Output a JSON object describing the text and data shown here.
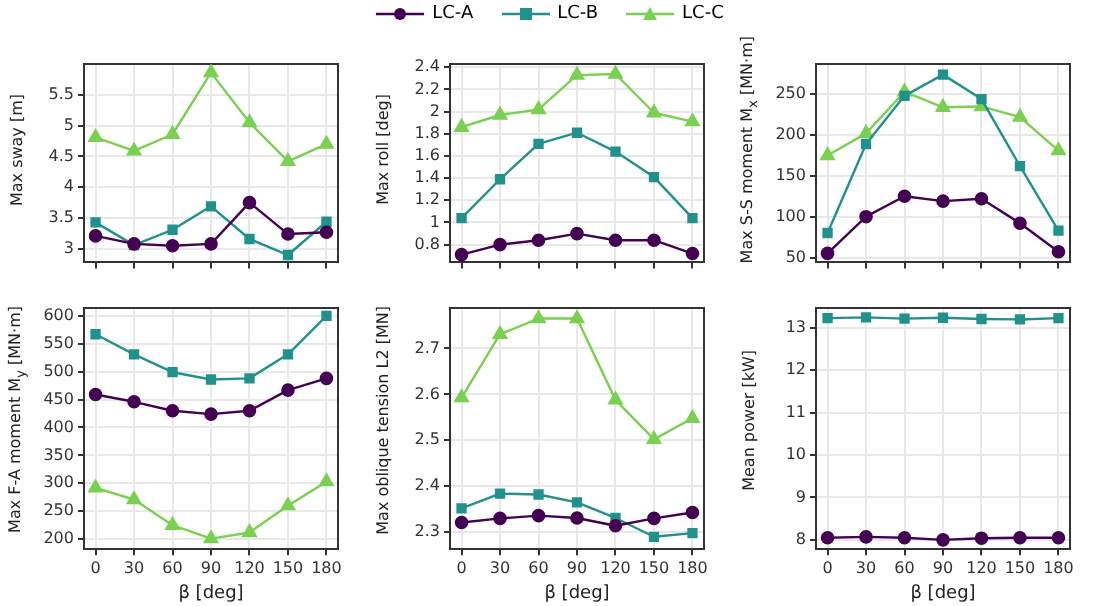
{
  "chart_data": [
    {
      "type": "line",
      "ylabel": "Max sway [m]",
      "x": [
        0,
        30,
        60,
        90,
        120,
        150,
        180
      ],
      "xlim": [
        -9,
        189
      ],
      "xticks": [
        0,
        30,
        60,
        90,
        120,
        150,
        180
      ],
      "ylim": [
        2.78,
        6.0
      ],
      "yticks": [
        3.0,
        3.5,
        4.0,
        4.5,
        5.0,
        5.5
      ],
      "grid": true,
      "legend": "top",
      "tick_labels": "y",
      "series": [
        {
          "name": "LC-A",
          "color": "#440154",
          "marker": "circle",
          "values": [
            3.21,
            3.08,
            3.05,
            3.08,
            3.75,
            3.24,
            3.27
          ]
        },
        {
          "name": "LC-B",
          "color": "#21918c",
          "marker": "square",
          "values": [
            3.43,
            3.06,
            3.31,
            3.69,
            3.16,
            2.9,
            3.44
          ]
        },
        {
          "name": "LC-C",
          "color": "#7ad151",
          "marker": "triangle",
          "values": [
            4.81,
            4.59,
            4.86,
            5.86,
            5.05,
            4.42,
            4.7
          ]
        }
      ]
    },
    {
      "type": "line",
      "ylabel": "Max roll [deg]",
      "x": [
        0,
        30,
        60,
        90,
        120,
        150,
        180
      ],
      "xlim": [
        -9,
        189
      ],
      "xticks": [
        0,
        30,
        60,
        90,
        120,
        150,
        180
      ],
      "ylim": [
        0.64,
        2.43
      ],
      "yticks": [
        0.8,
        1.0,
        1.2,
        1.4,
        1.6,
        1.8,
        2.0,
        2.2,
        2.4
      ],
      "grid": true,
      "tick_labels": "y",
      "series": [
        {
          "name": "LC-A",
          "color": "#440154",
          "marker": "circle",
          "values": [
            0.71,
            0.8,
            0.84,
            0.9,
            0.84,
            0.84,
            0.72
          ]
        },
        {
          "name": "LC-B",
          "color": "#21918c",
          "marker": "square",
          "values": [
            1.04,
            1.39,
            1.71,
            1.81,
            1.64,
            1.41,
            1.04
          ]
        },
        {
          "name": "LC-C",
          "color": "#7ad151",
          "marker": "triangle",
          "values": [
            1.86,
            1.97,
            2.02,
            2.33,
            2.34,
            1.99,
            1.91
          ]
        }
      ]
    },
    {
      "type": "line",
      "ylabel": "Max S-S moment M$_{x}$ [MN·m]",
      "x": [
        0,
        30,
        60,
        90,
        120,
        150,
        180
      ],
      "xlim": [
        -9,
        189
      ],
      "xticks": [
        0,
        30,
        60,
        90,
        120,
        150,
        180
      ],
      "ylim": [
        44,
        287
      ],
      "yticks": [
        50,
        100,
        150,
        200,
        250
      ],
      "grid": true,
      "tick_labels": "y",
      "series": [
        {
          "name": "LC-A",
          "color": "#440154",
          "marker": "circle",
          "values": [
            55,
            100,
            125,
            119,
            122,
            92,
            57
          ]
        },
        {
          "name": "LC-B",
          "color": "#21918c",
          "marker": "square",
          "values": [
            80,
            189,
            248,
            274,
            244,
            162,
            83
          ]
        },
        {
          "name": "LC-C",
          "color": "#7ad151",
          "marker": "triangle",
          "values": [
            175,
            202,
            253,
            234,
            235,
            222,
            181
          ]
        }
      ]
    },
    {
      "type": "line",
      "ylabel": "Max F-A moment M$_{y}$ [MN·m]",
      "xlabel": "β [deg]",
      "x": [
        0,
        30,
        60,
        90,
        120,
        150,
        180
      ],
      "xlim": [
        -9,
        189
      ],
      "xticks": [
        0,
        30,
        60,
        90,
        120,
        150,
        180
      ],
      "ylim": [
        182,
        614
      ],
      "yticks": [
        200,
        250,
        300,
        350,
        400,
        450,
        500,
        550,
        600
      ],
      "grid": true,
      "series": [
        {
          "name": "LC-A",
          "color": "#440154",
          "marker": "circle",
          "values": [
            459,
            446,
            430,
            424,
            430,
            467,
            488
          ]
        },
        {
          "name": "LC-B",
          "color": "#21918c",
          "marker": "square",
          "values": [
            567,
            531,
            499,
            486,
            488,
            531,
            600
          ]
        },
        {
          "name": "LC-C",
          "color": "#7ad151",
          "marker": "triangle",
          "values": [
            292,
            271,
            225,
            201,
            212,
            260,
            303
          ]
        }
      ]
    },
    {
      "type": "line",
      "ylabel": "Max oblique tension L2 [MN]",
      "xlabel": "β [deg]",
      "x": [
        0,
        30,
        60,
        90,
        120,
        150,
        180
      ],
      "xlim": [
        -9,
        189
      ],
      "xticks": [
        0,
        30,
        60,
        90,
        120,
        150,
        180
      ],
      "ylim": [
        2.263,
        2.788
      ],
      "yticks": [
        2.3,
        2.4,
        2.5,
        2.6,
        2.7
      ],
      "grid": true,
      "series": [
        {
          "name": "LC-A",
          "color": "#440154",
          "marker": "circle",
          "values": [
            2.321,
            2.33,
            2.336,
            2.331,
            2.314,
            2.33,
            2.343
          ]
        },
        {
          "name": "LC-B",
          "color": "#21918c",
          "marker": "square",
          "values": [
            2.352,
            2.384,
            2.382,
            2.365,
            2.331,
            2.29,
            2.298
          ]
        },
        {
          "name": "LC-C",
          "color": "#7ad151",
          "marker": "triangle",
          "values": [
            2.593,
            2.731,
            2.765,
            2.765,
            2.588,
            2.502,
            2.548
          ]
        }
      ]
    },
    {
      "type": "line",
      "ylabel": "Mean power [kW]",
      "xlabel": "β [deg]",
      "x": [
        0,
        30,
        60,
        90,
        120,
        150,
        180
      ],
      "xlim": [
        -9,
        189
      ],
      "xticks": [
        0,
        30,
        60,
        90,
        120,
        150,
        180
      ],
      "ylim": [
        7.78,
        13.47
      ],
      "yticks": [
        8,
        9,
        10,
        11,
        12,
        13
      ],
      "grid": true,
      "series": [
        {
          "name": "LC-A",
          "color": "#440154",
          "marker": "circle",
          "values": [
            8.05,
            8.07,
            8.05,
            8.0,
            8.04,
            8.05,
            8.05
          ]
        },
        {
          "name": "LC-B",
          "color": "#21918c",
          "marker": "square",
          "values": [
            13.23,
            13.25,
            13.22,
            13.24,
            13.21,
            13.2,
            13.23
          ]
        }
      ]
    }
  ]
}
